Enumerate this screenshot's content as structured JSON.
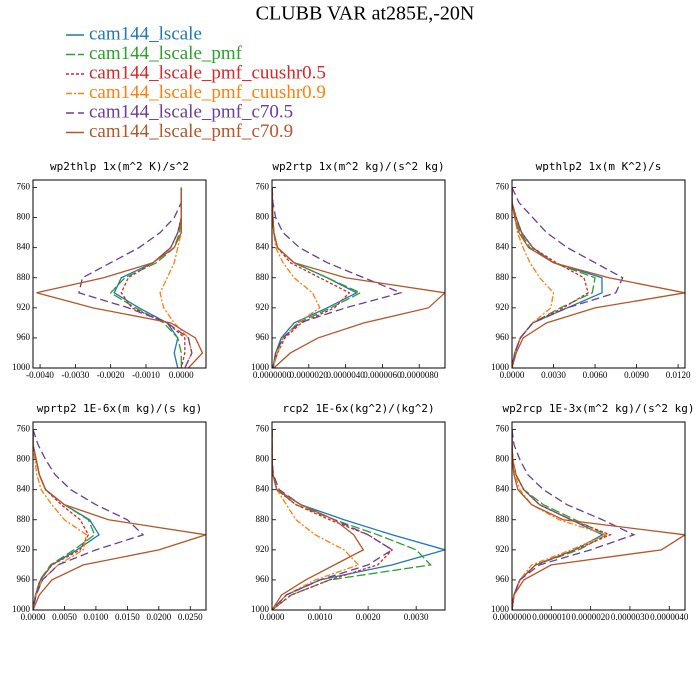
{
  "title": "CLUBB VAR at285E,-20N",
  "legend": [
    {
      "name": "cam144_lscale",
      "color": "#1f77b4",
      "dash": "none"
    },
    {
      "name": "cam144_lscale_pmf",
      "color": "#2ca02c",
      "dash": "9,3"
    },
    {
      "name": "cam144_lscale_pmf_cuushr0.5",
      "color": "#d62728",
      "dash": "3,2"
    },
    {
      "name": "cam144_lscale_pmf_cuushr0.9",
      "color": "#ff7f0e",
      "dash": "6,2,2,2"
    },
    {
      "name": "cam144_lscale_pmf_c70.5",
      "color": "#6a3d9a",
      "dash": "8,4"
    },
    {
      "name": "cam144_lscale_pmf_c70.9",
      "color": "#b5562a",
      "dash": "none"
    }
  ],
  "chart_data": [
    {
      "type": "line",
      "title": "wp2thlp  1x(m^2 K)/s^2",
      "y": [
        760,
        780,
        800,
        820,
        840,
        860,
        880,
        900,
        920,
        940,
        960,
        980,
        1000
      ],
      "xlim": [
        -0.0042,
        0.0007
      ],
      "ylim": [
        1000,
        750
      ],
      "xticks": [
        {
          "value": -0.004,
          "label": "-0.0040"
        },
        {
          "value": -0.003,
          "label": "-0.0030"
        },
        {
          "value": -0.002,
          "label": "-0.0020"
        },
        {
          "value": -0.001,
          "label": "-0.0010"
        },
        {
          "value": 0,
          "label": "0.0000"
        }
      ],
      "yticks": [
        760,
        800,
        840,
        880,
        920,
        960,
        1000
      ],
      "series": [
        {
          "values": [
            0,
            0,
            0,
            -0.0001,
            -0.0003,
            -0.0008,
            -0.0017,
            -0.0019,
            -0.0012,
            -0.0004,
            -0.0001,
            -0.0002,
            -0.0001
          ]
        },
        {
          "values": [
            0,
            0,
            0,
            -5e-05,
            -0.0002,
            -0.0007,
            -0.0016,
            -0.002,
            -0.0013,
            -0.0005,
            -0.0001,
            0,
            0
          ]
        },
        {
          "values": [
            0,
            0,
            0,
            -0.0001,
            -0.0003,
            -0.0008,
            -0.0015,
            -0.0017,
            -0.0014,
            -0.0004,
            0.0001,
            0.0001,
            0
          ]
        },
        {
          "values": [
            0,
            0,
            0,
            0,
            -0.0001,
            -0.0002,
            -0.0004,
            -0.0006,
            -0.0005,
            -0.0002,
            0.0002,
            0.0003,
            0.0001
          ]
        },
        {
          "values": [
            0,
            0,
            -0.0002,
            -0.0006,
            -0.0012,
            -0.002,
            -0.0028,
            -0.0029,
            -0.0015,
            -0.0004,
            0.0002,
            0.0003,
            0.0001
          ]
        },
        {
          "values": [
            0,
            0,
            0,
            0,
            -0.0002,
            -0.0008,
            -0.0022,
            -0.0041,
            -0.0025,
            -0.0003,
            0.0004,
            0.0006,
            0.0002
          ]
        }
      ]
    },
    {
      "type": "line",
      "title": "wp2rtp  1x(m^2 kg)/(s^2 kg)",
      "y": [
        760,
        780,
        800,
        820,
        840,
        860,
        880,
        900,
        920,
        940,
        960,
        980,
        1000
      ],
      "xlim": [
        0,
        9.4e-06
      ],
      "ylim": [
        1000,
        750
      ],
      "xticks": [
        {
          "value": 0,
          "label": "0.0000000"
        },
        {
          "value": 2e-06,
          "label": "0.0000020"
        },
        {
          "value": 4e-06,
          "label": "0.0000040"
        },
        {
          "value": 6e-06,
          "label": "0.0000060"
        },
        {
          "value": 8e-06,
          "label": "0.0000080"
        }
      ],
      "yticks": [
        760,
        800,
        840,
        880,
        920,
        960,
        1000
      ],
      "series": [
        {
          "values": [
            1e-08,
            2e-08,
            5e-08,
            1e-07,
            3e-07,
            1.2e-06,
            3e-06,
            4.6e-06,
            3e-06,
            1.2e-06,
            5e-07,
            2e-07,
            5e-08
          ]
        },
        {
          "values": [
            1e-08,
            2e-08,
            5e-08,
            1e-07,
            3e-07,
            1.2e-06,
            3e-06,
            4.8e-06,
            3.2e-06,
            1.4e-06,
            6e-07,
            2e-07,
            5e-08
          ]
        },
        {
          "values": [
            1e-08,
            2e-08,
            5e-08,
            1e-07,
            3e-07,
            1e-06,
            2.6e-06,
            4.2e-06,
            3.4e-06,
            1.6e-06,
            7e-07,
            3e-07,
            5e-08
          ]
        },
        {
          "values": [
            1e-08,
            2e-08,
            5e-08,
            1e-07,
            2e-07,
            6e-07,
            1.2e-06,
            2.2e-06,
            2.6e-06,
            1.4e-06,
            6e-07,
            3e-07,
            5e-08
          ]
        },
        {
          "values": [
            1e-08,
            5e-08,
            2e-07,
            6e-07,
            1.5e-06,
            3e-06,
            5e-06,
            7e-06,
            4e-06,
            1.5e-06,
            6e-07,
            2e-07,
            5e-08
          ]
        },
        {
          "values": [
            1e-08,
            2e-08,
            5e-08,
            1e-07,
            3e-07,
            1.2e-06,
            4e-06,
            9.4e-06,
            8.5e-06,
            5e-06,
            2.5e-06,
            1e-06,
            1e-07
          ]
        }
      ]
    },
    {
      "type": "line",
      "title": "wpthlp2  1x(m K^2)/s",
      "y": [
        760,
        780,
        800,
        820,
        840,
        860,
        880,
        900,
        920,
        940,
        960,
        980,
        1000
      ],
      "xlim": [
        0,
        0.0125
      ],
      "ylim": [
        1000,
        750
      ],
      "xticks": [
        {
          "value": 0,
          "label": "0.0000"
        },
        {
          "value": 0.003,
          "label": "0.0030"
        },
        {
          "value": 0.006,
          "label": "0.0060"
        },
        {
          "value": 0.009,
          "label": "0.0090"
        },
        {
          "value": 0.012,
          "label": "0.0120"
        }
      ],
      "yticks": [
        760,
        800,
        840,
        880,
        920,
        960,
        1000
      ],
      "series": [
        {
          "values": [
            0,
            0,
            0.0003,
            0.0007,
            0.0015,
            0.003,
            0.0065,
            0.0065,
            0.004,
            0.0015,
            0.0006,
            0.0002,
            0
          ]
        },
        {
          "values": [
            0,
            0,
            0.0003,
            0.0006,
            0.0013,
            0.003,
            0.006,
            0.0058,
            0.0035,
            0.0015,
            0.0006,
            0.0002,
            0
          ]
        },
        {
          "values": [
            0,
            0,
            0.0003,
            0.0007,
            0.0015,
            0.0032,
            0.0052,
            0.0055,
            0.0037,
            0.0015,
            0.0006,
            0.0002,
            0
          ]
        },
        {
          "values": [
            0,
            0,
            0.0002,
            0.0004,
            0.0008,
            0.0013,
            0.002,
            0.003,
            0.0028,
            0.0015,
            0.0006,
            0.0002,
            0
          ]
        },
        {
          "values": [
            0,
            0.0005,
            0.0015,
            0.0025,
            0.004,
            0.006,
            0.008,
            0.0075,
            0.004,
            0.0015,
            0.0006,
            0.0002,
            0
          ]
        },
        {
          "values": [
            0,
            0,
            0.0002,
            0.0005,
            0.0012,
            0.003,
            0.007,
            0.0125,
            0.006,
            0.0025,
            0.0008,
            0.0003,
            0
          ]
        }
      ]
    },
    {
      "type": "line",
      "title": "wprtp2  1E-6x(m kg)/(s kg)",
      "y": [
        760,
        780,
        800,
        820,
        840,
        860,
        880,
        900,
        920,
        940,
        960,
        980,
        1000
      ],
      "xlim": [
        0,
        0.0275
      ],
      "ylim": [
        1000,
        750
      ],
      "xticks": [
        {
          "value": 0,
          "label": "0.0000"
        },
        {
          "value": 0.005,
          "label": "0.0050"
        },
        {
          "value": 0.01,
          "label": "0.0100"
        },
        {
          "value": 0.015,
          "label": "0.0150"
        },
        {
          "value": 0.02,
          "label": "0.0200"
        },
        {
          "value": 0.025,
          "label": "0.0250"
        }
      ],
      "yticks": [
        760,
        800,
        840,
        880,
        920,
        960,
        1000
      ],
      "series": [
        {
          "values": [
            0,
            0,
            0.0005,
            0.001,
            0.002,
            0.005,
            0.009,
            0.0105,
            0.007,
            0.003,
            0.0012,
            0.0004,
            0
          ]
        },
        {
          "values": [
            0,
            0,
            0.0005,
            0.001,
            0.002,
            0.005,
            0.0088,
            0.0098,
            0.0065,
            0.0028,
            0.0011,
            0.0004,
            0
          ]
        },
        {
          "values": [
            0,
            0,
            0.0005,
            0.001,
            0.002,
            0.0045,
            0.0075,
            0.0088,
            0.0075,
            0.003,
            0.0012,
            0.0004,
            0
          ]
        },
        {
          "values": [
            0,
            0,
            0.0003,
            0.0006,
            0.0013,
            0.003,
            0.005,
            0.0085,
            0.008,
            0.004,
            0.0015,
            0.0005,
            0
          ]
        },
        {
          "values": [
            0,
            0.0008,
            0.002,
            0.0035,
            0.006,
            0.01,
            0.015,
            0.0175,
            0.01,
            0.004,
            0.0015,
            0.0005,
            0
          ]
        },
        {
          "values": [
            0,
            0,
            0.0005,
            0.001,
            0.002,
            0.005,
            0.012,
            0.0275,
            0.02,
            0.008,
            0.003,
            0.001,
            0
          ]
        }
      ]
    },
    {
      "type": "line",
      "title": "rcp2  1E-6x(kg^2)/(kg^2)",
      "y": [
        760,
        780,
        800,
        820,
        840,
        860,
        880,
        900,
        920,
        940,
        960,
        980,
        1000
      ],
      "xlim": [
        0,
        0.0036
      ],
      "ylim": [
        1000,
        750
      ],
      "xticks": [
        {
          "value": 0,
          "label": "0.0000"
        },
        {
          "value": 0.001,
          "label": "0.0010"
        },
        {
          "value": 0.002,
          "label": "0.0020"
        },
        {
          "value": 0.003,
          "label": "0.0030"
        }
      ],
      "yticks": [
        760,
        800,
        840,
        880,
        920,
        960,
        1000
      ],
      "series": [
        {
          "values": [
            0,
            0,
            0,
            2e-05,
            0.0001,
            0.0006,
            0.0015,
            0.0025,
            0.0036,
            0.0025,
            0.001,
            0.0003,
            0
          ]
        },
        {
          "values": [
            0,
            0,
            0,
            2e-05,
            0.0001,
            0.0005,
            0.0013,
            0.0022,
            0.003,
            0.0033,
            0.0012,
            0.0004,
            0
          ]
        },
        {
          "values": [
            0,
            0,
            0,
            2e-05,
            0.0001,
            0.0005,
            0.0012,
            0.002,
            0.0025,
            0.0022,
            0.0012,
            0.0004,
            0
          ]
        },
        {
          "values": [
            0,
            0,
            0,
            2e-05,
            0.0001,
            0.0003,
            0.0005,
            0.0009,
            0.0015,
            0.0018,
            0.0009,
            0.0003,
            0
          ]
        },
        {
          "values": [
            0,
            0,
            0,
            3e-05,
            0.00015,
            0.0006,
            0.0013,
            0.002,
            0.0025,
            0.002,
            0.001,
            0.0003,
            0
          ]
        },
        {
          "values": [
            0,
            0,
            0,
            2e-05,
            0.0001,
            0.0006,
            0.0013,
            0.0017,
            0.0019,
            0.0013,
            0.0007,
            0.0002,
            0
          ]
        }
      ]
    },
    {
      "type": "line",
      "title": "wp2rcp  1E-3x(m^2 kg)/(s^2 kg)",
      "y": [
        760,
        780,
        800,
        820,
        840,
        860,
        880,
        900,
        920,
        940,
        960,
        980,
        1000
      ],
      "xlim": [
        0,
        4.4e-06
      ],
      "ylim": [
        1000,
        750
      ],
      "xticks": [
        {
          "value": 0,
          "label": "0.0000000"
        },
        {
          "value": 1e-06,
          "label": "0.0000010"
        },
        {
          "value": 2e-06,
          "label": "0.0000020"
        },
        {
          "value": 3e-06,
          "label": "0.0000030"
        },
        {
          "value": 4e-06,
          "label": "0.0000040"
        }
      ],
      "yticks": [
        760,
        800,
        840,
        880,
        920,
        960,
        1000
      ],
      "series": [
        {
          "values": [
            0,
            0,
            2e-08,
            1e-07,
            3e-07,
            7e-07,
            1.5e-06,
            2.3e-06,
            1.6e-06,
            6e-07,
            2e-07,
            5e-08,
            0
          ]
        },
        {
          "values": [
            0,
            0,
            2e-08,
            1e-07,
            3e-07,
            8e-07,
            1.6e-06,
            2.4e-06,
            1.7e-06,
            6e-07,
            2e-07,
            5e-08,
            0
          ]
        },
        {
          "values": [
            0,
            0,
            2e-08,
            1e-07,
            3e-07,
            7e-07,
            1.5e-06,
            2.5e-06,
            1.6e-06,
            6e-07,
            2e-07,
            5e-08,
            0
          ]
        },
        {
          "values": [
            0,
            0,
            2e-08,
            8e-08,
            2e-07,
            5e-07,
            1.2e-06,
            2.4e-06,
            1.5e-06,
            5e-07,
            2e-07,
            5e-08,
            0
          ]
        },
        {
          "values": [
            0,
            5e-08,
            2e-07,
            4e-07,
            8e-07,
            1.4e-06,
            2.3e-06,
            3.1e-06,
            2e-06,
            7e-07,
            2e-07,
            5e-08,
            0
          ]
        },
        {
          "values": [
            0,
            0,
            1e-08,
            5e-08,
            1.5e-07,
            5e-07,
            1.3e-06,
            4.4e-06,
            3.8e-06,
            1e-06,
            3e-07,
            5e-08,
            0
          ]
        }
      ]
    }
  ]
}
